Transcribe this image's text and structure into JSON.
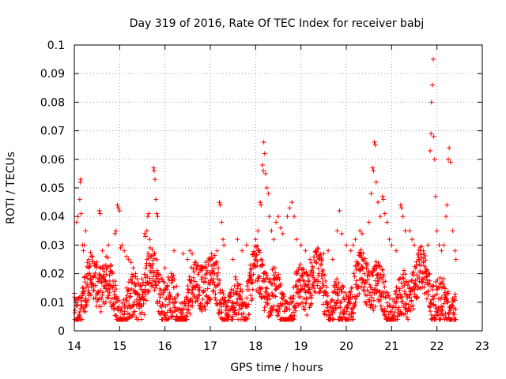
{
  "chart_data": {
    "type": "scatter",
    "title": "Day 319 of 2016, Rate Of TEC Index for receiver babj",
    "xlabel": "GPS time / hours",
    "ylabel": "ROTI / TECUs",
    "xlim": [
      14,
      23
    ],
    "ylim": [
      0,
      0.1
    ],
    "x_ticks": [
      "14",
      "15",
      "16",
      "17",
      "18",
      "19",
      "20",
      "21",
      "22",
      "23"
    ],
    "y_ticks": [
      "0",
      "0.01",
      "0.02",
      "0.03",
      "0.04",
      "0.05",
      "0.06",
      "0.07",
      "0.08",
      "0.09",
      "0.1"
    ],
    "grid": true,
    "marker": "+",
    "color": "#ff0000",
    "series": [
      {
        "name": "ROTI",
        "points": [
          [
            14.05,
            0.038
          ],
          [
            14.08,
            0.04
          ],
          [
            14.12,
            0.046
          ],
          [
            14.13,
            0.052
          ],
          [
            14.14,
            0.053
          ],
          [
            14.15,
            0.041
          ],
          [
            14.18,
            0.03
          ],
          [
            14.2,
            0.028
          ],
          [
            14.22,
            0.03
          ],
          [
            14.25,
            0.035
          ],
          [
            14.3,
            0.02
          ],
          [
            14.32,
            0.025
          ],
          [
            14.35,
            0.018
          ],
          [
            14.55,
            0.042
          ],
          [
            14.57,
            0.041
          ],
          [
            14.62,
            0.028
          ],
          [
            14.7,
            0.026
          ],
          [
            14.75,
            0.03
          ],
          [
            14.8,
            0.023
          ],
          [
            14.9,
            0.034
          ],
          [
            14.92,
            0.035
          ],
          [
            14.95,
            0.044
          ],
          [
            14.97,
            0.043
          ],
          [
            15.0,
            0.042
          ],
          [
            15.02,
            0.029
          ],
          [
            15.05,
            0.03
          ],
          [
            15.1,
            0.028
          ],
          [
            15.15,
            0.026
          ],
          [
            15.2,
            0.025
          ],
          [
            15.25,
            0.024
          ],
          [
            15.3,
            0.022
          ],
          [
            15.35,
            0.02
          ],
          [
            15.55,
            0.034
          ],
          [
            15.57,
            0.033
          ],
          [
            15.6,
            0.035
          ],
          [
            15.62,
            0.04
          ],
          [
            15.64,
            0.041
          ],
          [
            15.66,
            0.032
          ],
          [
            15.75,
            0.057
          ],
          [
            15.76,
            0.056
          ],
          [
            15.78,
            0.053
          ],
          [
            15.8,
            0.046
          ],
          [
            15.82,
            0.041
          ],
          [
            15.84,
            0.04
          ],
          [
            16.0,
            0.022
          ],
          [
            16.2,
            0.028
          ],
          [
            16.4,
            0.027
          ],
          [
            16.5,
            0.025
          ],
          [
            16.55,
            0.028
          ],
          [
            16.6,
            0.027
          ],
          [
            16.8,
            0.022
          ],
          [
            16.9,
            0.024
          ],
          [
            17.0,
            0.025
          ],
          [
            17.15,
            0.028
          ],
          [
            17.2,
            0.045
          ],
          [
            17.22,
            0.044
          ],
          [
            17.25,
            0.038
          ],
          [
            17.28,
            0.032
          ],
          [
            17.3,
            0.03
          ],
          [
            17.5,
            0.025
          ],
          [
            17.6,
            0.032
          ],
          [
            17.7,
            0.028
          ],
          [
            17.8,
            0.03
          ],
          [
            18.0,
            0.032
          ],
          [
            18.05,
            0.035
          ],
          [
            18.1,
            0.045
          ],
          [
            18.12,
            0.044
          ],
          [
            18.15,
            0.058
          ],
          [
            18.17,
            0.056
          ],
          [
            18.18,
            0.066
          ],
          [
            18.2,
            0.062
          ],
          [
            18.22,
            0.055
          ],
          [
            18.25,
            0.05
          ],
          [
            18.28,
            0.048
          ],
          [
            18.3,
            0.04
          ],
          [
            18.35,
            0.035
          ],
          [
            18.4,
            0.032
          ],
          [
            18.45,
            0.038
          ],
          [
            18.5,
            0.04
          ],
          [
            18.55,
            0.036
          ],
          [
            18.6,
            0.034
          ],
          [
            18.7,
            0.04
          ],
          [
            18.75,
            0.043
          ],
          [
            18.8,
            0.045
          ],
          [
            18.85,
            0.04
          ],
          [
            18.9,
            0.032
          ],
          [
            19.0,
            0.03
          ],
          [
            19.1,
            0.028
          ],
          [
            19.2,
            0.025
          ],
          [
            19.4,
            0.025
          ],
          [
            19.5,
            0.027
          ],
          [
            19.6,
            0.028
          ],
          [
            19.7,
            0.025
          ],
          [
            19.8,
            0.035
          ],
          [
            19.85,
            0.042
          ],
          [
            19.9,
            0.034
          ],
          [
            20.0,
            0.03
          ],
          [
            20.1,
            0.028
          ],
          [
            20.15,
            0.03
          ],
          [
            20.2,
            0.032
          ],
          [
            20.3,
            0.035
          ],
          [
            20.35,
            0.034
          ],
          [
            20.5,
            0.038
          ],
          [
            20.55,
            0.048
          ],
          [
            20.58,
            0.057
          ],
          [
            20.6,
            0.056
          ],
          [
            20.62,
            0.066
          ],
          [
            20.64,
            0.065
          ],
          [
            20.66,
            0.052
          ],
          [
            20.7,
            0.045
          ],
          [
            20.75,
            0.04
          ],
          [
            20.8,
            0.047
          ],
          [
            20.82,
            0.046
          ],
          [
            20.85,
            0.041
          ],
          [
            20.9,
            0.038
          ],
          [
            20.95,
            0.032
          ],
          [
            21.0,
            0.03
          ],
          [
            21.1,
            0.028
          ],
          [
            21.2,
            0.044
          ],
          [
            21.22,
            0.043
          ],
          [
            21.25,
            0.04
          ],
          [
            21.3,
            0.035
          ],
          [
            21.4,
            0.035
          ],
          [
            21.45,
            0.032
          ],
          [
            21.5,
            0.03
          ],
          [
            21.6,
            0.025
          ],
          [
            21.7,
            0.028
          ],
          [
            21.8,
            0.03
          ],
          [
            21.85,
            0.063
          ],
          [
            21.87,
            0.069
          ],
          [
            21.88,
            0.08
          ],
          [
            21.9,
            0.086
          ],
          [
            21.92,
            0.095
          ],
          [
            21.93,
            0.068
          ],
          [
            21.95,
            0.06
          ],
          [
            21.97,
            0.047
          ],
          [
            22.0,
            0.035
          ],
          [
            22.05,
            0.03
          ],
          [
            22.1,
            0.028
          ],
          [
            22.15,
            0.03
          ],
          [
            22.2,
            0.04
          ],
          [
            22.22,
            0.044
          ],
          [
            22.25,
            0.06
          ],
          [
            22.27,
            0.064
          ],
          [
            22.3,
            0.059
          ],
          [
            22.35,
            0.035
          ],
          [
            22.4,
            0.028
          ],
          [
            22.42,
            0.025
          ]
        ]
      }
    ]
  }
}
